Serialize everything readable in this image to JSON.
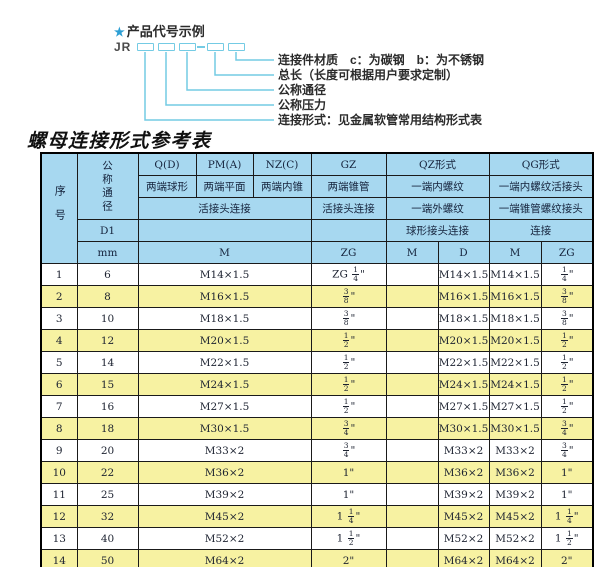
{
  "colors": {
    "accent_cyan": "#74cbe4",
    "header_blue": "#a7d8f0",
    "row_yellow": "#f7f2a2"
  },
  "diagram": {
    "star": "★",
    "title": "产品代号示例",
    "prefix": "JR",
    "labels": [
      "连接件材质　c：为碳钢　b：为不锈钢",
      "总长（长度可根据用户要求定制）",
      "公称通径",
      "公称压力",
      "连接形式：见金属软管常用结构形式表"
    ]
  },
  "table": {
    "title": "螺母连接形式参考表",
    "header": {
      "seq": "序号",
      "dn": "公称通径",
      "d1": "D1",
      "mm": "mm",
      "col_q": "Q(D)",
      "col_pm": "PM(A)",
      "col_nz": "NZ(C)",
      "col_gz": "GZ",
      "col_qz": "QZ形式",
      "col_qg": "QG形式",
      "q_desc": "两端球形",
      "pm_desc": "两端平面",
      "nz_desc": "两端内锥",
      "gz_desc": "两端锥管",
      "qz_desc1": "一端内螺纹",
      "qg_desc1": "一端内螺纹活接头",
      "union_conn": "活接头连接",
      "gz_conn": "活接头连接",
      "qz_desc2": "一端外螺纹",
      "qg_desc2": "一端锥管螺纹接头",
      "qz_conn": "球形接头连接",
      "qg_conn": "连接",
      "m_unit": "M",
      "zg_unit": "ZG",
      "qz_m_unit": "M",
      "qz_d_unit": "D",
      "qg_m_unit": "M",
      "qg_zg_unit": "ZG"
    },
    "rows": [
      {
        "no": "1",
        "dn": "6",
        "m": "M14×1.5",
        "gz": "ZG 1/4\"",
        "qz_m": "",
        "qz_d": "M14×1.5",
        "qg_m": "M14×1.5",
        "qg_zg": "1/4\""
      },
      {
        "no": "2",
        "dn": "8",
        "m": "M16×1.5",
        "gz": "3/8\"",
        "qz_m": "",
        "qz_d": "M16×1.5",
        "qg_m": "M16×1.5",
        "qg_zg": "3/8\""
      },
      {
        "no": "3",
        "dn": "10",
        "m": "M18×1.5",
        "gz": "3/8\"",
        "qz_m": "",
        "qz_d": "M18×1.5",
        "qg_m": "M18×1.5",
        "qg_zg": "3/8\""
      },
      {
        "no": "4",
        "dn": "12",
        "m": "M20×1.5",
        "gz": "1/2\"",
        "qz_m": "",
        "qz_d": "M20×1.5",
        "qg_m": "M20×1.5",
        "qg_zg": "1/2\""
      },
      {
        "no": "5",
        "dn": "14",
        "m": "M22×1.5",
        "gz": "1/2\"",
        "qz_m": "",
        "qz_d": "M22×1.5",
        "qg_m": "M22×1.5",
        "qg_zg": "1/2\""
      },
      {
        "no": "6",
        "dn": "15",
        "m": "M24×1.5",
        "gz": "1/2\"",
        "qz_m": "",
        "qz_d": "M24×1.5",
        "qg_m": "M24×1.5",
        "qg_zg": "1/2\""
      },
      {
        "no": "7",
        "dn": "16",
        "m": "M27×1.5",
        "gz": "1/2\"",
        "qz_m": "",
        "qz_d": "M27×1.5",
        "qg_m": "M27×1.5",
        "qg_zg": "1/2\""
      },
      {
        "no": "8",
        "dn": "18",
        "m": "M30×1.5",
        "gz": "3/4\"",
        "qz_m": "",
        "qz_d": "M30×1.5",
        "qg_m": "M30×1.5",
        "qg_zg": "3/4\""
      },
      {
        "no": "9",
        "dn": "20",
        "m": "M33×2",
        "gz": "3/4\"",
        "qz_m": "",
        "qz_d": "M33×2",
        "qg_m": "M33×2",
        "qg_zg": "3/4\""
      },
      {
        "no": "10",
        "dn": "22",
        "m": "M36×2",
        "gz": "1\"",
        "qz_m": "",
        "qz_d": "M36×2",
        "qg_m": "M36×2",
        "qg_zg": "1\""
      },
      {
        "no": "11",
        "dn": "25",
        "m": "M39×2",
        "gz": "1\"",
        "qz_m": "",
        "qz_d": "M39×2",
        "qg_m": "M39×2",
        "qg_zg": "1\""
      },
      {
        "no": "12",
        "dn": "32",
        "m": "M45×2",
        "gz": "1 1/4\"",
        "qz_m": "",
        "qz_d": "M45×2",
        "qg_m": "M45×2",
        "qg_zg": "1 1/4\""
      },
      {
        "no": "13",
        "dn": "40",
        "m": "M52×2",
        "gz": "1 1/2\"",
        "qz_m": "",
        "qz_d": "M52×2",
        "qg_m": "M52×2",
        "qg_zg": "1 1/2\""
      },
      {
        "no": "14",
        "dn": "50",
        "m": "M64×2",
        "gz": "2\"",
        "qz_m": "",
        "qz_d": "M64×2",
        "qg_m": "M64×2",
        "qg_zg": "2\""
      }
    ]
  }
}
